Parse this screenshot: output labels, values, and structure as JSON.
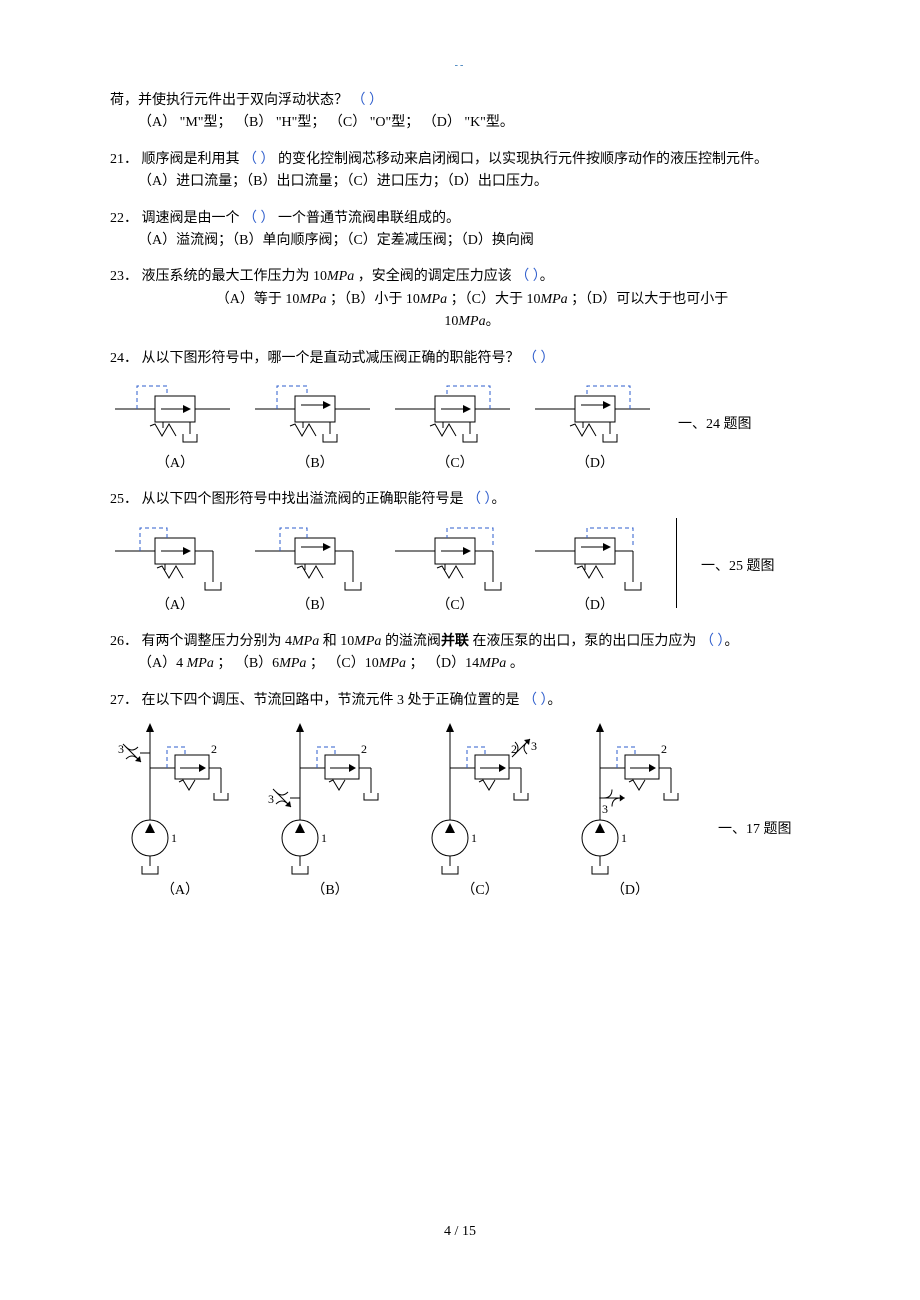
{
  "topMark": "--",
  "q20": {
    "continuation": "荷，并使执行元件出于双向浮动状态？",
    "blank": "（  ）",
    "opts": "（A） \"M\"型；   （B） \"H\"型；   （C）  \"O\"型；     （D） \"K\"型。"
  },
  "q21": {
    "num": "21．",
    "pre": "顺序阀是利用其",
    "blank": "（  ）",
    "post": "的变化控制阀芯移动来启闭阀口，以实现执行元件按顺序动作的液压控制元件。",
    "opts": "（A）进口流量；（B）出口流量；（C）进口压力；（D）出口压力。"
  },
  "q22": {
    "num": "22．",
    "pre": "调速阀是由一个",
    "blank": "（  ）",
    "post": "一个普通节流阀串联组成的。",
    "opts": "（A）溢流阀；（B）单向顺序阀；（C）定差减压阀；（D）换向阀"
  },
  "q23": {
    "num": "23．",
    "text1": "液压系统的最大工作压力为 10",
    "mpa": "MPa",
    "text2": "，安全阀的调定压力应该",
    "blank": "（  ）",
    "period": "。",
    "opts1": "（A）等于 10",
    "opts2": "；（B）小于 10",
    "opts3": "；（C）大于 10",
    "opts4": "；（D）可以大于也可小于",
    "opts5": "10",
    "opts6": "。"
  },
  "q24": {
    "num": "24．",
    "text": "从以下图形符号中，哪一个是直动式减压阀正确的职能符号？",
    "blank": "（  ）",
    "labels": {
      "a": "（A）",
      "b": "（B）",
      "c": "（C）",
      "d": "（D）"
    },
    "side": "一、24 题图"
  },
  "q25": {
    "num": "25．",
    "text": "从以下四个图形符号中找出溢流阀的正确职能符号是",
    "blank": "（  ）",
    "period": "。",
    "labels": {
      "a": "（A）",
      "b": "（B）",
      "c": "（C）",
      "d": "（D）"
    },
    "side": "一、25 题图"
  },
  "q26": {
    "num": "26．",
    "t1": "有两个调整压力分别为 4",
    "t2": " 和 10",
    "t3": " 的溢流阀",
    "bold": "并联",
    "t4": "在液压泵的出口，泵的出口压力应为",
    "blank": "（  ）",
    "period": "。",
    "optA": "（A）4 ",
    "optB": "；     （B）6",
    "optC": "；       （C）10",
    "optD": "；   （D）14",
    "optEnd": "。"
  },
  "q27": {
    "num": "27．",
    "text": "在以下四个调压、节流回路中，节流元件 3 处于正确位置的是",
    "blank": "（  ）",
    "period": "。",
    "labels": {
      "a": "（A）",
      "b": "（B）",
      "c": "（C）",
      "d": "（D）"
    },
    "side": "一、17 题图"
  },
  "pageNum": "4  /  15",
  "svgStyle": {
    "boxStroke": "#000000",
    "boxFill": "#ffffff",
    "dashStroke": "#2e5dcc",
    "dashPattern": "4,3",
    "lineStroke": "#000000",
    "thinGray": "#888888"
  }
}
